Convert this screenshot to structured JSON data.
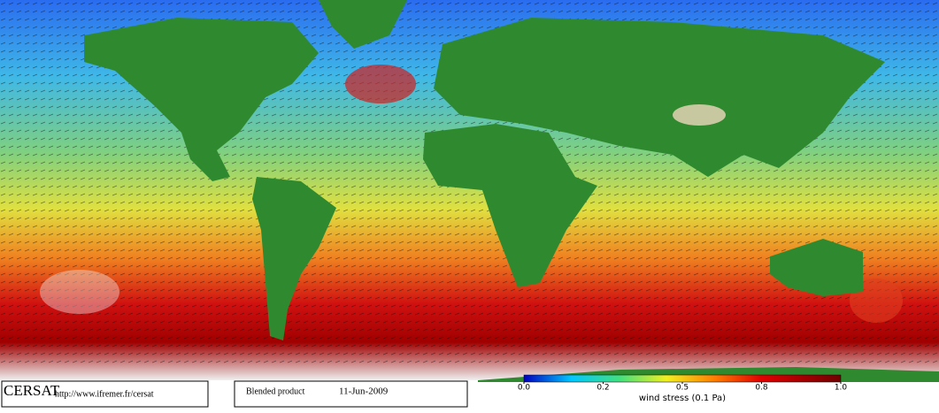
{
  "footer": {
    "logo": "CERSAT",
    "url": "http://www.ifremer.fr/cersat",
    "product": "Blended product",
    "date": "11-Jun-2009"
  },
  "colorbar": {
    "label": "wind stress (0.1 Pa)",
    "ticks": [
      {
        "value": 0,
        "label": "0.0"
      },
      {
        "value": 0.2,
        "label": "0.2"
      },
      {
        "value": 0.5,
        "label": "0.5"
      },
      {
        "value": 0.8,
        "label": "0.8"
      },
      {
        "value": 1,
        "label": "1.0"
      }
    ]
  }
}
